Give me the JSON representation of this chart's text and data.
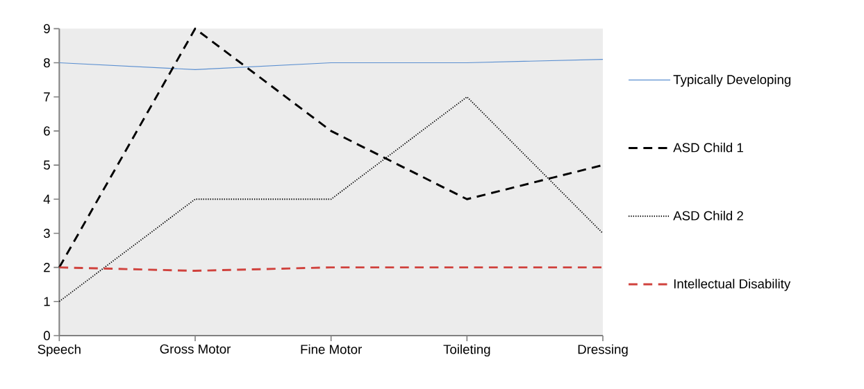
{
  "chart_data": {
    "type": "line",
    "categories": [
      "Speech",
      "Gross Motor",
      "Fine Motor",
      "Toileting",
      "Dressing"
    ],
    "series": [
      {
        "name": "Typically Developing",
        "color": "#5b8fd0",
        "line_style": "solid",
        "values": [
          8,
          7.8,
          8,
          8,
          8.1
        ]
      },
      {
        "name": "ASD Child 1",
        "color": "#000000",
        "line_style": "dashed",
        "values": [
          2,
          9,
          6,
          4,
          5
        ]
      },
      {
        "name": "ASD Child 2",
        "color": "#000000",
        "line_style": "dotted",
        "values": [
          1,
          4,
          4,
          7,
          3
        ]
      },
      {
        "name": "Intellectual Disability",
        "color": "#d0423d",
        "line_style": "dashed",
        "values": [
          2,
          1.9,
          2,
          2,
          2
        ]
      }
    ],
    "ylim": [
      0,
      9
    ],
    "yticks": [
      0,
      1,
      2,
      3,
      4,
      5,
      6,
      7,
      8,
      9
    ],
    "grid": false,
    "legend": "right",
    "marker": "none"
  }
}
